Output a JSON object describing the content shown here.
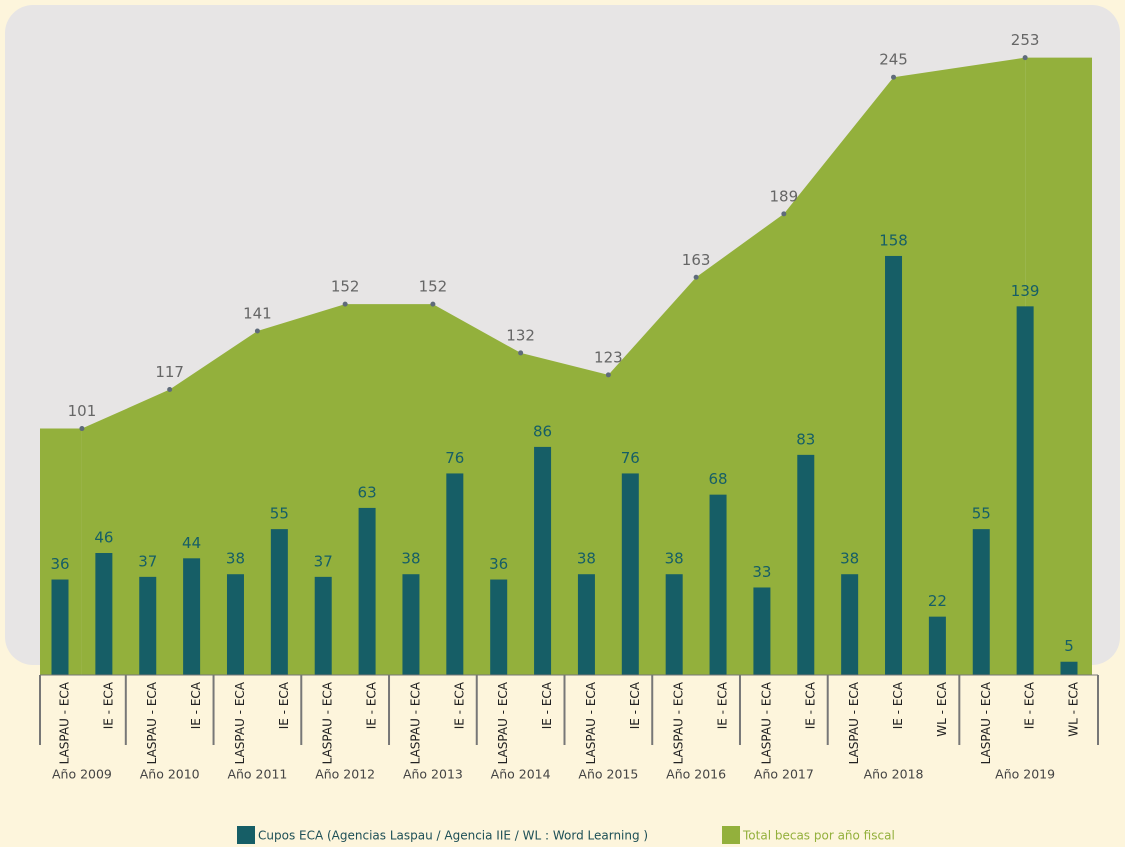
{
  "chart_data": {
    "type": "bar",
    "groups": [
      {
        "name": "Año 2009",
        "categories": [
          "LASPAU - ECA",
          "IE - ECA"
        ]
      },
      {
        "name": "Año 2010",
        "categories": [
          "LASPAU - ECA",
          "IE - ECA"
        ]
      },
      {
        "name": "Año 2011",
        "categories": [
          "LASPAU - ECA",
          "IE - ECA"
        ]
      },
      {
        "name": "Año 2012",
        "categories": [
          "LASPAU - ECA",
          "IE - ECA"
        ]
      },
      {
        "name": "Año 2013",
        "categories": [
          "LASPAU - ECA",
          "IE - ECA"
        ]
      },
      {
        "name": "Año 2014",
        "categories": [
          "LASPAU - ECA",
          "IE - ECA"
        ]
      },
      {
        "name": "Año 2015",
        "categories": [
          "LASPAU - ECA",
          "IE - ECA"
        ]
      },
      {
        "name": "Año 2016",
        "categories": [
          "LASPAU - ECA",
          "IE - ECA"
        ]
      },
      {
        "name": "Año 2017",
        "categories": [
          "LASPAU - ECA",
          "IE - ECA"
        ]
      },
      {
        "name": "Año 2018",
        "categories": [
          "LASPAU - ECA",
          "IE - ECA",
          "WL - ECA"
        ]
      },
      {
        "name": "Año 2019",
        "categories": [
          "LASPAU - ECA",
          "IE - ECA",
          "WL - ECA"
        ]
      }
    ],
    "series": [
      {
        "name": "Cupos ECA (Agencias Laspau / Agencia IIE / WL : Word Learning )",
        "color": "#165e66",
        "values": [
          36,
          46,
          37,
          44,
          38,
          55,
          37,
          63,
          38,
          76,
          36,
          86,
          38,
          76,
          38,
          68,
          33,
          83,
          38,
          158,
          22,
          55,
          139,
          5
        ]
      },
      {
        "name": "Total becas por año fiscal",
        "color": "#93b03c",
        "type": "area",
        "axis": "y2",
        "values": [
          101,
          117,
          141,
          152,
          152,
          132,
          123,
          163,
          189,
          245,
          253
        ]
      }
    ],
    "ylim": [
      0,
      230
    ],
    "y2lim": [
      0,
      250
    ]
  }
}
